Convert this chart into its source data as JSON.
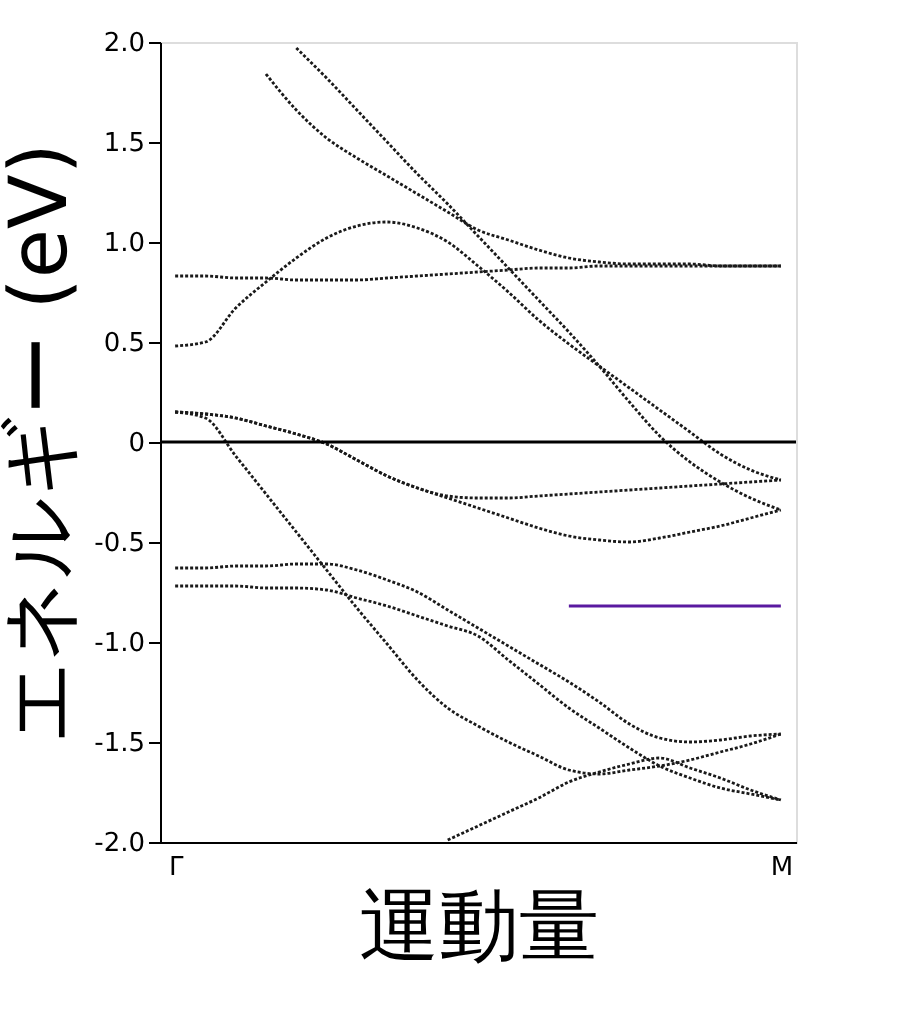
{
  "chart_data": {
    "type": "line",
    "xlabel": "運動量",
    "ylabel": "エネルギー (eV)",
    "categories": [
      "Γ",
      null,
      null,
      null,
      null,
      null,
      null,
      null,
      null,
      null,
      null,
      null,
      null,
      null,
      null,
      null,
      null,
      null,
      null,
      null,
      "M"
    ],
    "ylim": [
      -2.0,
      2.0
    ],
    "yticks": [
      {
        "value": -2,
        "label": "-2.0"
      },
      -1.5,
      {
        "value": -1,
        "label": "-1.0"
      },
      -0.5,
      0,
      0.5,
      {
        "value": 1,
        "label": "1.0"
      },
      1.5,
      {
        "value": 2,
        "label": "2.0"
      }
    ],
    "grid": false,
    "legend": false,
    "marker": "none",
    "line_style": "dotted",
    "ref_lines": [
      {
        "axis": "y",
        "value": 0,
        "color": "#000000",
        "line_style": "solid"
      }
    ],
    "series": [
      {
        "color": "#1a1a1a",
        "values": [
          null,
          null,
          null,
          null,
          1.97,
          1.82,
          1.66,
          1.5,
          1.34,
          1.19,
          1.03,
          0.87,
          0.71,
          0.55,
          0.38,
          0.2,
          0.03,
          -0.1,
          -0.2,
          -0.28,
          -0.34
        ]
      },
      {
        "color": "#1a1a1a",
        "values": [
          null,
          null,
          null,
          1.84,
          1.66,
          1.52,
          1.42,
          1.33,
          1.24,
          1.15,
          1.06,
          1.01,
          0.96,
          0.92,
          0.9,
          0.89,
          0.89,
          0.89,
          0.88,
          0.88,
          0.88
        ]
      },
      {
        "color": "#1a1a1a",
        "values": [
          0.83,
          0.83,
          0.82,
          0.82,
          0.81,
          0.81,
          0.81,
          0.82,
          0.83,
          0.84,
          0.85,
          0.86,
          0.87,
          0.87,
          0.88,
          0.88,
          0.88,
          0.88,
          0.88,
          0.88,
          0.88
        ]
      },
      {
        "color": "#1a1a1a",
        "values": [
          0.48,
          0.5,
          0.67,
          0.8,
          0.92,
          1.02,
          1.08,
          1.1,
          1.07,
          1.0,
          0.88,
          0.75,
          0.61,
          0.49,
          0.38,
          0.27,
          0.16,
          0.05,
          -0.06,
          -0.14,
          -0.19
        ]
      },
      {
        "color": "#1a1a1a",
        "values": [
          0.15,
          0.14,
          0.12,
          0.08,
          0.04,
          -0.01,
          -0.09,
          -0.17,
          -0.23,
          -0.27,
          -0.28,
          -0.28,
          -0.27,
          -0.26,
          -0.25,
          -0.24,
          -0.23,
          -0.22,
          -0.21,
          -0.2,
          -0.19
        ]
      },
      {
        "color": "#1a1a1a",
        "values": [
          0.15,
          0.14,
          0.12,
          0.08,
          0.04,
          -0.01,
          -0.09,
          -0.17,
          -0.23,
          -0.28,
          -0.33,
          -0.38,
          -0.43,
          -0.47,
          -0.49,
          -0.5,
          -0.48,
          -0.45,
          -0.42,
          -0.38,
          -0.34
        ]
      },
      {
        "color": "#1a1a1a",
        "values": [
          0.15,
          0.12,
          -0.07,
          -0.26,
          -0.45,
          -0.64,
          -0.83,
          -1.01,
          -1.19,
          -1.33,
          -1.42,
          -1.5,
          -1.57,
          -1.64,
          -1.66,
          -1.64,
          -1.62,
          -1.59,
          -1.55,
          -1.51,
          -1.46
        ]
      },
      {
        "color": "#1a1a1a",
        "values": [
          null,
          null,
          null,
          null,
          null,
          null,
          null,
          null,
          null,
          -1.99,
          -1.92,
          -1.85,
          -1.78,
          -1.7,
          -1.65,
          -1.61,
          -1.58,
          -1.63,
          -1.68,
          -1.74,
          -1.79
        ]
      },
      {
        "color": "#1a1a1a",
        "values": [
          -0.63,
          -0.63,
          -0.62,
          -0.62,
          -0.61,
          -0.61,
          -0.64,
          -0.69,
          -0.75,
          -0.84,
          -0.93,
          -1.02,
          -1.11,
          -1.2,
          -1.3,
          -1.41,
          -1.48,
          -1.5,
          -1.49,
          -1.47,
          -1.46
        ]
      },
      {
        "color": "#1a1a1a",
        "values": [
          -0.72,
          -0.72,
          -0.72,
          -0.73,
          -0.73,
          -0.74,
          -0.78,
          -0.82,
          -0.87,
          -0.92,
          -0.97,
          -1.09,
          -1.21,
          -1.33,
          -1.43,
          -1.53,
          -1.62,
          -1.68,
          -1.73,
          -1.76,
          -1.79
        ]
      },
      {
        "color": "#5a1aa0",
        "line_style": "solid",
        "values": [
          null,
          null,
          null,
          null,
          null,
          null,
          null,
          null,
          null,
          null,
          null,
          null,
          null,
          -0.82,
          -0.82,
          -0.82,
          -0.82,
          -0.82,
          -0.82,
          -0.82,
          -0.82
        ]
      }
    ]
  }
}
